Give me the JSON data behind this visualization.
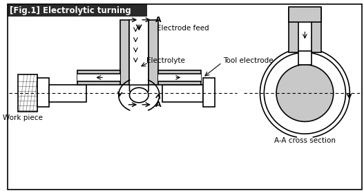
{
  "title": "[Fig.1] Electrolytic turning",
  "title_bg": "#2a2a2a",
  "title_color": "#ffffff",
  "bg_color": "#ffffff",
  "border_color": "#000000",
  "gray_fill": "#c8c8c8",
  "light_gray": "#e8e8e8",
  "labels": {
    "electrode_feed": "Electrode feed",
    "electrolyte": "Electrolyte",
    "tool_electrode": "Tool electrode",
    "work_piece": "Work piece",
    "cross_section": "A-A cross section",
    "A_top": "A",
    "A_bottom": "A"
  }
}
